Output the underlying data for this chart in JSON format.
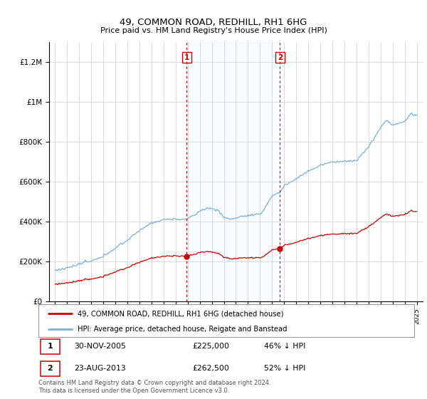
{
  "title": "49, COMMON ROAD, REDHILL, RH1 6HG",
  "subtitle": "Price paid vs. HM Land Registry's House Price Index (HPI)",
  "ylim": [
    0,
    1300000
  ],
  "yticks": [
    0,
    200000,
    400000,
    600000,
    800000,
    1000000,
    1200000
  ],
  "ytick_labels": [
    "£0",
    "£200K",
    "£400K",
    "£600K",
    "£800K",
    "£1M",
    "£1.2M"
  ],
  "sale1_year": 2005.92,
  "sale1_price": 225000,
  "sale2_year": 2013.65,
  "sale2_price": 262500,
  "legend1": "49, COMMON ROAD, REDHILL, RH1 6HG (detached house)",
  "legend2": "HPI: Average price, detached house, Reigate and Banstead",
  "footer": "Contains HM Land Registry data © Crown copyright and database right 2024.\nThis data is licensed under the Open Government Licence v3.0.",
  "red_color": "#cc0000",
  "blue_color": "#7ab0d4",
  "shade_color": "#ddeeff"
}
